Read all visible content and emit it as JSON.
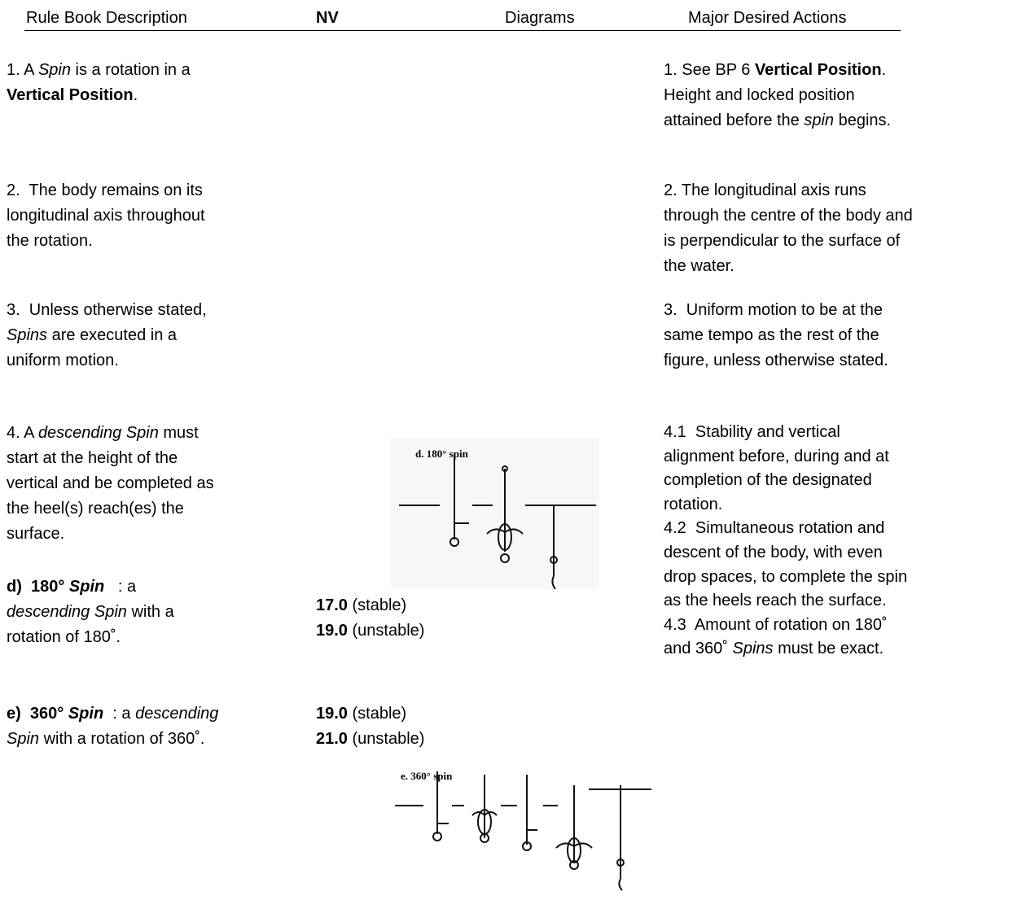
{
  "header": [
    "Rule Book Description",
    "NV",
    "Diagrams",
    "Major Desired Actions"
  ],
  "sections": [
    {
      "left": [
        [
          {
            "text": "1. A "
          },
          {
            "text": "Spin",
            "style": "italic"
          },
          {
            "text": " is a rotation in a"
          }
        ],
        [
          {
            "text": "Vertical Position",
            "style": "bold"
          },
          {
            "text": "."
          }
        ]
      ],
      "right": [
        [
          {
            "text": "1. See BP 6 "
          },
          {
            "text": "Vertical Position",
            "style": "bold"
          },
          {
            "text": "."
          }
        ],
        [
          {
            "text": "Height and locked position"
          }
        ],
        [
          {
            "text": "attained before the "
          },
          {
            "text": "spin",
            "style": "italic"
          },
          {
            "text": " begins."
          }
        ]
      ]
    },
    {
      "left": [
        [
          {
            "text": "2.  The body remains on its"
          }
        ],
        [
          {
            "text": "longitudinal axis throughout"
          }
        ],
        [
          {
            "text": "the rotation."
          }
        ]
      ],
      "right": [
        [
          {
            "text": "2. The longitudinal axis runs"
          }
        ],
        [
          {
            "text": "through the centre of the body and"
          }
        ],
        [
          {
            "text": "is perpendicular to the surface of"
          }
        ],
        [
          {
            "text": "the water."
          }
        ]
      ]
    },
    {
      "left": [
        [
          {
            "text": "3.  Unless otherwise stated,"
          }
        ],
        [
          {
            "text": "Spins",
            "style": "italic"
          },
          {
            "text": " are executed in a"
          }
        ],
        [
          {
            "text": "uniform motion."
          }
        ]
      ],
      "right": [
        [
          {
            "text": "3.  Uniform motion to be at the"
          }
        ],
        [
          {
            "text": "same tempo as the rest of the"
          }
        ],
        [
          {
            "text": "figure, unless otherwise stated."
          }
        ]
      ]
    },
    {
      "left": [
        [
          {
            "text": "4. A "
          },
          {
            "text": "descending Spin",
            "style": "italic"
          },
          {
            "text": " must"
          }
        ],
        [
          {
            "text": "start at the height of the"
          }
        ],
        [
          {
            "text": "vertical and be completed as"
          }
        ],
        [
          {
            "text": "the heel(s) reach(es) the"
          }
        ],
        [
          {
            "text": "surface."
          }
        ]
      ],
      "right": [
        [
          {
            "text": "4.1  Stability and vertical"
          }
        ],
        [
          {
            "text": "alignment before, during and at"
          }
        ],
        [
          {
            "text": "completion of the designated"
          }
        ],
        [
          {
            "text": "rotation."
          }
        ],
        [
          {
            "text": "4.2  Simultaneous rotation and"
          }
        ],
        [
          {
            "text": "descent of the body, with even"
          }
        ],
        [
          {
            "text": "drop spaces, to complete the spin"
          }
        ],
        [
          {
            "text": "as the heels reach the surface."
          }
        ],
        [
          {
            "text": "4.3  Amount of rotation on 180˚"
          }
        ],
        [
          {
            "text": "and 360˚ "
          },
          {
            "text": "Spins",
            "style": "italic"
          },
          {
            "text": " must be exact."
          }
        ]
      ]
    },
    {
      "left": [
        [
          {
            "text": "d)  180° ",
            "style": "bold"
          },
          {
            "text": "Spin",
            "style": "bold-italic"
          },
          {
            "text": "   : a"
          }
        ],
        [
          {
            "text": "descending Spin",
            "style": "italic"
          },
          {
            "text": " with a"
          }
        ],
        [
          {
            "text": "rotation of 180˚."
          }
        ]
      ],
      "nv": [
        [
          {
            "text": "17.0",
            "style": "bold"
          },
          {
            "text": " (stable)"
          }
        ],
        [
          {
            "text": "19.0",
            "style": "bold"
          },
          {
            "text": " (unstable)"
          }
        ]
      ],
      "caption": "d. 180° spin"
    },
    {
      "left": [
        [
          {
            "text": "e)  360° ",
            "style": "bold"
          },
          {
            "text": "Spin",
            "style": "bold-italic"
          },
          {
            "text": "  : a "
          },
          {
            "text": "descending",
            "style": "italic"
          }
        ],
        [
          {
            "text": "Spin",
            "style": "italic"
          },
          {
            "text": " with a rotation of 360˚."
          }
        ]
      ],
      "nv": [
        [
          {
            "text": "19.0",
            "style": "bold"
          },
          {
            "text": " (stable)"
          }
        ],
        [
          {
            "text": "21.0",
            "style": "bold"
          },
          {
            "text": " (unstable)"
          }
        ]
      ],
      "caption": "e. 360° spin"
    }
  ]
}
